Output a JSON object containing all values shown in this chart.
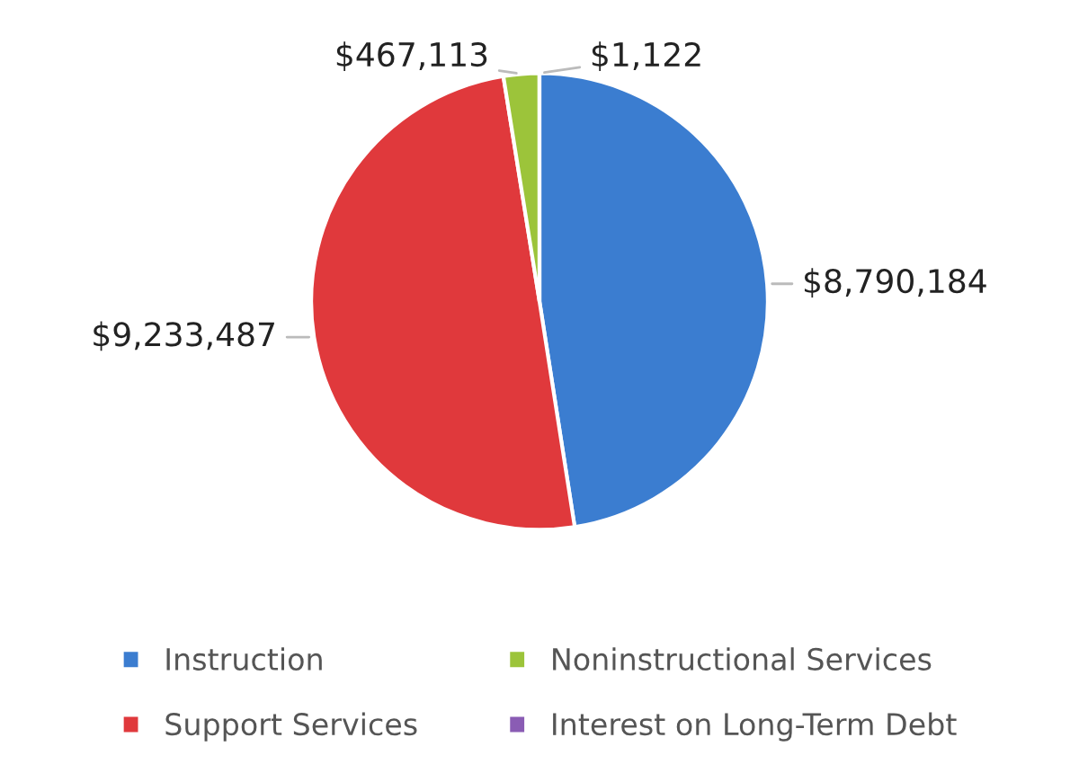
{
  "chart_data": {
    "type": "pie",
    "categories": [
      "Instruction",
      "Support Services",
      "Noninstructional Services",
      "Interest on Long-Term Debt"
    ],
    "values": [
      8790184,
      9233487,
      467113,
      1122
    ],
    "colors": [
      "#3b7dd0",
      "#e0393c",
      "#9cc43a",
      "#8a5cb4"
    ],
    "value_labels": [
      "$8,790,184",
      "$9,233,487",
      "$467,113",
      "$1,122"
    ],
    "legend": "bottom"
  }
}
